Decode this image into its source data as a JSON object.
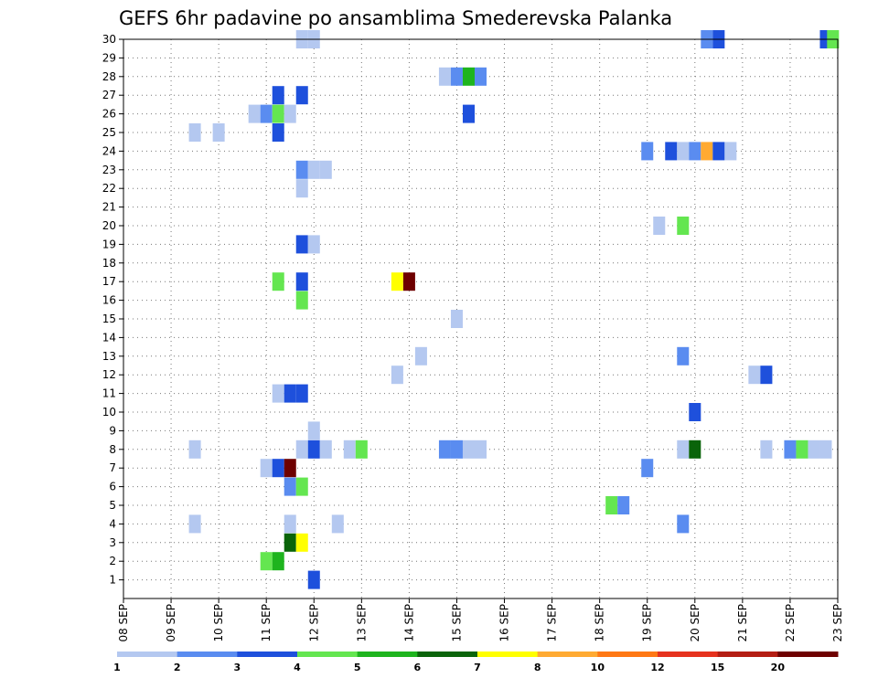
{
  "chart_data": {
    "type": "heatmap",
    "title": "GEFS 6hr padavine po ansamblima Smederevska Palanka",
    "xlabel": "",
    "ylabel": "",
    "x_tick_labels": [
      "08 SEP",
      "09 SEP",
      "10 SEP",
      "11 SEP",
      "12 SEP",
      "13 SEP",
      "14 SEP",
      "15 SEP",
      "16 SEP",
      "17 SEP",
      "18 SEP",
      "19 SEP",
      "20 SEP",
      "21 SEP",
      "22 SEP",
      "23 SEP"
    ],
    "y_tick_labels": [
      "1",
      "2",
      "3",
      "4",
      "5",
      "6",
      "7",
      "8",
      "9",
      "10",
      "11",
      "12",
      "13",
      "14",
      "15",
      "16",
      "17",
      "18",
      "19",
      "20",
      "21",
      "22",
      "23",
      "24",
      "25",
      "26",
      "27",
      "28",
      "29",
      "30"
    ],
    "x_range_days": [
      8,
      23
    ],
    "y_range": [
      0,
      30
    ],
    "grid": true,
    "colorbar": {
      "labels": [
        "1",
        "2",
        "3",
        "4",
        "5",
        "6",
        "7",
        "8",
        "10",
        "12",
        "15",
        "20"
      ],
      "colors": [
        "#b4c8f0",
        "#5a8cf0",
        "#1e50dc",
        "#64e650",
        "#1eb41e",
        "#0a640a",
        "#ffff00",
        "#ffaa32",
        "#ff7814",
        "#e6321e",
        "#b41e14",
        "#6e0000"
      ]
    },
    "cells": [
      {
        "member": 30,
        "day": 11.75,
        "mm": 1
      },
      {
        "member": 30,
        "day": 12.0,
        "mm": 1
      },
      {
        "member": 30,
        "day": 20.25,
        "mm": 2
      },
      {
        "member": 30,
        "day": 20.5,
        "mm": 3
      },
      {
        "member": 30,
        "day": 22.75,
        "mm": 3
      },
      {
        "member": 30,
        "day": 22.9,
        "mm": 4
      },
      {
        "member": 28,
        "day": 14.75,
        "mm": 1
      },
      {
        "member": 28,
        "day": 15.0,
        "mm": 2
      },
      {
        "member": 28,
        "day": 15.25,
        "mm": 5
      },
      {
        "member": 28,
        "day": 15.5,
        "mm": 2
      },
      {
        "member": 27,
        "day": 11.25,
        "mm": 3
      },
      {
        "member": 27,
        "day": 11.75,
        "mm": 3
      },
      {
        "member": 26,
        "day": 10.75,
        "mm": 1
      },
      {
        "member": 26,
        "day": 11.0,
        "mm": 2
      },
      {
        "member": 26,
        "day": 11.25,
        "mm": 4
      },
      {
        "member": 26,
        "day": 11.5,
        "mm": 1
      },
      {
        "member": 26,
        "day": 15.25,
        "mm": 3
      },
      {
        "member": 25,
        "day": 9.5,
        "mm": 1
      },
      {
        "member": 25,
        "day": 10.0,
        "mm": 1
      },
      {
        "member": 25,
        "day": 11.25,
        "mm": 3
      },
      {
        "member": 24,
        "day": 19.0,
        "mm": 2
      },
      {
        "member": 24,
        "day": 19.5,
        "mm": 3
      },
      {
        "member": 24,
        "day": 19.75,
        "mm": 1
      },
      {
        "member": 24,
        "day": 20.0,
        "mm": 2
      },
      {
        "member": 24,
        "day": 20.25,
        "mm": 8
      },
      {
        "member": 24,
        "day": 20.5,
        "mm": 3
      },
      {
        "member": 24,
        "day": 20.75,
        "mm": 1
      },
      {
        "member": 23,
        "day": 11.75,
        "mm": 2
      },
      {
        "member": 23,
        "day": 12.0,
        "mm": 1
      },
      {
        "member": 23,
        "day": 12.25,
        "mm": 1
      },
      {
        "member": 22,
        "day": 11.75,
        "mm": 1
      },
      {
        "member": 20,
        "day": 19.25,
        "mm": 1
      },
      {
        "member": 20,
        "day": 19.75,
        "mm": 4
      },
      {
        "member": 19,
        "day": 11.75,
        "mm": 3
      },
      {
        "member": 19,
        "day": 12.0,
        "mm": 1
      },
      {
        "member": 17,
        "day": 11.25,
        "mm": 4
      },
      {
        "member": 17,
        "day": 11.75,
        "mm": 3
      },
      {
        "member": 17,
        "day": 13.75,
        "mm": 7
      },
      {
        "member": 17,
        "day": 14.0,
        "mm": 20
      },
      {
        "member": 16,
        "day": 11.75,
        "mm": 4
      },
      {
        "member": 15,
        "day": 15.0,
        "mm": 1
      },
      {
        "member": 13,
        "day": 14.25,
        "mm": 1
      },
      {
        "member": 13,
        "day": 19.75,
        "mm": 2
      },
      {
        "member": 12,
        "day": 13.75,
        "mm": 1
      },
      {
        "member": 12,
        "day": 21.25,
        "mm": 1
      },
      {
        "member": 12,
        "day": 21.5,
        "mm": 3
      },
      {
        "member": 11,
        "day": 11.25,
        "mm": 1
      },
      {
        "member": 11,
        "day": 11.5,
        "mm": 3
      },
      {
        "member": 11,
        "day": 11.75,
        "mm": 3
      },
      {
        "member": 10,
        "day": 20.0,
        "mm": 3
      },
      {
        "member": 9,
        "day": 12.0,
        "mm": 1
      },
      {
        "member": 8,
        "day": 9.5,
        "mm": 1
      },
      {
        "member": 8,
        "day": 11.75,
        "mm": 1
      },
      {
        "member": 8,
        "day": 12.0,
        "mm": 3
      },
      {
        "member": 8,
        "day": 12.25,
        "mm": 1
      },
      {
        "member": 8,
        "day": 12.75,
        "mm": 1
      },
      {
        "member": 8,
        "day": 13.0,
        "mm": 4
      },
      {
        "member": 8,
        "day": 14.75,
        "mm": 2
      },
      {
        "member": 8,
        "day": 15.0,
        "mm": 2
      },
      {
        "member": 8,
        "day": 15.25,
        "mm": 1
      },
      {
        "member": 8,
        "day": 15.5,
        "mm": 1
      },
      {
        "member": 8,
        "day": 19.75,
        "mm": 1
      },
      {
        "member": 8,
        "day": 20.0,
        "mm": 6
      },
      {
        "member": 8,
        "day": 21.5,
        "mm": 1
      },
      {
        "member": 8,
        "day": 22.0,
        "mm": 2
      },
      {
        "member": 8,
        "day": 22.25,
        "mm": 4
      },
      {
        "member": 8,
        "day": 22.5,
        "mm": 1
      },
      {
        "member": 8,
        "day": 22.75,
        "mm": 1
      },
      {
        "member": 7,
        "day": 11.0,
        "mm": 1
      },
      {
        "member": 7,
        "day": 11.25,
        "mm": 3
      },
      {
        "member": 7,
        "day": 11.5,
        "mm": 20
      },
      {
        "member": 7,
        "day": 19.0,
        "mm": 2
      },
      {
        "member": 6,
        "day": 11.5,
        "mm": 2
      },
      {
        "member": 6,
        "day": 11.75,
        "mm": 4
      },
      {
        "member": 5,
        "day": 18.25,
        "mm": 4
      },
      {
        "member": 5,
        "day": 18.5,
        "mm": 2
      },
      {
        "member": 4,
        "day": 9.5,
        "mm": 1
      },
      {
        "member": 4,
        "day": 11.5,
        "mm": 1
      },
      {
        "member": 4,
        "day": 12.5,
        "mm": 1
      },
      {
        "member": 4,
        "day": 19.75,
        "mm": 2
      },
      {
        "member": 3,
        "day": 11.5,
        "mm": 6
      },
      {
        "member": 3,
        "day": 11.75,
        "mm": 7
      },
      {
        "member": 2,
        "day": 11.0,
        "mm": 4
      },
      {
        "member": 2,
        "day": 11.25,
        "mm": 5
      },
      {
        "member": 1,
        "day": 12.0,
        "mm": 3
      }
    ]
  }
}
